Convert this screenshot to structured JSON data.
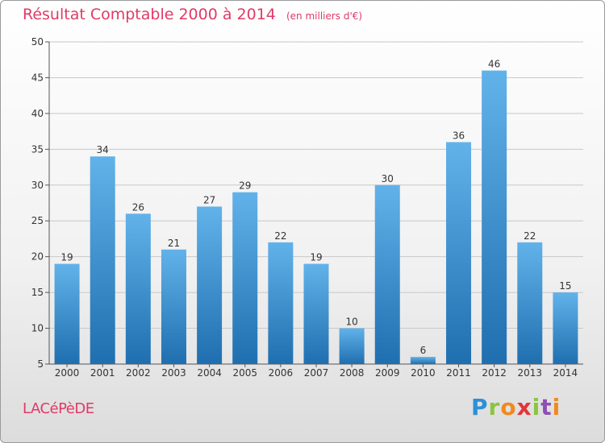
{
  "header": {
    "title": "Résultat Comptable 2000 à 2014",
    "subtitle": "(en milliers d'€)"
  },
  "footer": {
    "city": "LACéPèDE",
    "logo_letters": [
      "P",
      "r",
      "o",
      "x",
      "i",
      "t",
      "i"
    ],
    "logo_colors": [
      "#2e8fd6",
      "#8bc53f",
      "#f08a1f",
      "#e2353b",
      "#8bc53f",
      "#8e4fb3",
      "#f08a1f"
    ]
  },
  "colors": {
    "bar_top": "#62b2ea",
    "bar_bottom": "#1f6fb0",
    "text_accent": "#e03a68",
    "grid": "#c8c8c8"
  },
  "chart_data": {
    "type": "bar",
    "title": "Résultat Comptable 2000 à 2014",
    "subtitle": "(en milliers d'€)",
    "categories": [
      "2000",
      "2001",
      "2002",
      "2003",
      "2004",
      "2005",
      "2006",
      "2007",
      "2008",
      "2009",
      "2010",
      "2011",
      "2012",
      "2013",
      "2014"
    ],
    "values": [
      19,
      34,
      26,
      21,
      27,
      29,
      22,
      19,
      10,
      30,
      6,
      36,
      46,
      22,
      15
    ],
    "ylim": [
      5,
      50
    ],
    "yticks": [
      5,
      10,
      15,
      20,
      25,
      30,
      35,
      40,
      45,
      50
    ],
    "grid": true,
    "data_labels": true
  }
}
